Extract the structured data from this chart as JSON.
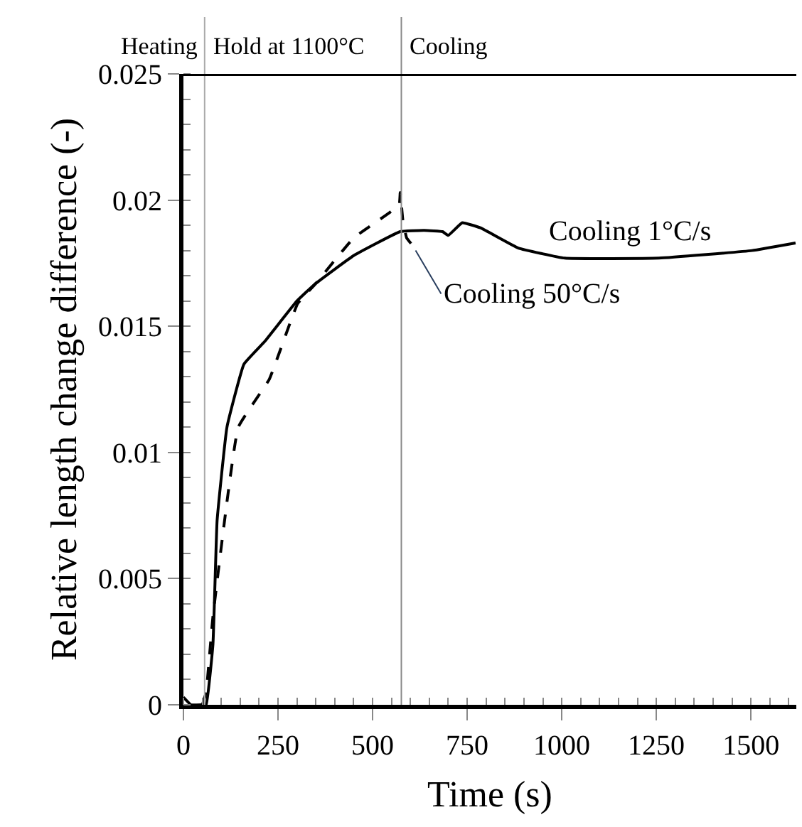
{
  "chart_data": {
    "type": "line",
    "xlabel": "Time (s)",
    "ylabel": "Relative length change difference (-)",
    "xlim": [
      0,
      1620
    ],
    "xticks": [
      0,
      250,
      500,
      750,
      1000,
      1250,
      1500
    ],
    "ylim": [
      0,
      0.025
    ],
    "yticks": [
      0,
      0.005,
      0.01,
      0.015,
      0.02,
      0.025
    ],
    "legend": false,
    "marker": "none",
    "ref_lines": [
      {
        "axis": "x",
        "value": 56,
        "color": "#aaaaaa"
      },
      {
        "axis": "x",
        "value": 576,
        "color": "#888888"
      }
    ],
    "annotations": [
      "Heating",
      "Hold at 1100°C",
      "Cooling"
    ],
    "series": [
      {
        "name": "Cooling 1°C/s",
        "color": "#000000",
        "line_style": "solid",
        "x": [
          0,
          20,
          50,
          60,
          78,
          89,
          115,
          160,
          215,
          300,
          350,
          450,
          573,
          636,
          685,
          700,
          737,
          785,
          885,
          1008,
          1257,
          1503,
          1618
        ],
        "values": [
          0.0003,
          0,
          0,
          0,
          0.0024,
          0.0073,
          0.011,
          0.0135,
          0.0144,
          0.016,
          0.0167,
          0.0178,
          0.01875,
          0.0188,
          0.01875,
          0.0186,
          0.0191,
          0.0189,
          0.0181,
          0.0177,
          0.0177,
          0.018,
          0.0183
        ]
      },
      {
        "name": "Cooling 50°C/s",
        "color": "#000000",
        "line_style": "dashed",
        "x": [
          50,
          60,
          78,
          145,
          227,
          302,
          350,
          450,
          570,
          573,
          580,
          590,
          606
        ],
        "values": [
          0,
          0.0005,
          0.0035,
          0.011,
          0.0129,
          0.0159,
          0.0167,
          0.0185,
          0.0198,
          0.0203,
          0.0192,
          0.0185,
          0.0182
        ]
      }
    ]
  }
}
